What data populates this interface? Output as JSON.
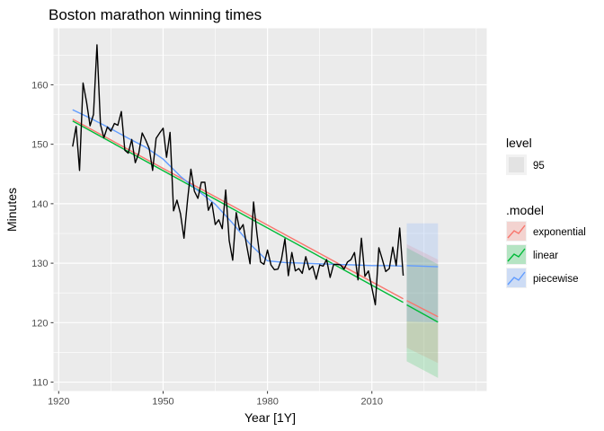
{
  "chart_data": {
    "type": "line",
    "title": "Boston marathon winning times",
    "xlabel": "Year [1Y]",
    "ylabel": "Minutes",
    "xlim": [
      1918.5,
      2043
    ],
    "ylim": [
      108.5,
      169.5
    ],
    "xticks": [
      1920,
      1950,
      1980,
      2010
    ],
    "xtick_labels": [
      "1920",
      "1950",
      "1980",
      "2010"
    ],
    "xminor": [
      1935,
      1965,
      1995,
      2025,
      2040
    ],
    "yticks": [
      110,
      120,
      130,
      140,
      150,
      160
    ],
    "ytick_labels": [
      "110",
      "120",
      "130",
      "140",
      "150",
      "160"
    ],
    "yminor": [
      115,
      125,
      135,
      145,
      155,
      165
    ],
    "grid": true,
    "legend_placement": "right",
    "observed": {
      "color": "#000000",
      "x": [
        1924,
        1925,
        1926,
        1927,
        1928,
        1929,
        1930,
        1931,
        1932,
        1933,
        1934,
        1935,
        1936,
        1937,
        1938,
        1939,
        1940,
        1941,
        1942,
        1943,
        1944,
        1945,
        1946,
        1947,
        1948,
        1949,
        1950,
        1951,
        1952,
        1953,
        1954,
        1955,
        1956,
        1957,
        1958,
        1959,
        1960,
        1961,
        1962,
        1963,
        1964,
        1965,
        1966,
        1967,
        1968,
        1969,
        1970,
        1971,
        1972,
        1973,
        1974,
        1975,
        1976,
        1977,
        1978,
        1979,
        1980,
        1981,
        1982,
        1983,
        1984,
        1985,
        1986,
        1987,
        1988,
        1989,
        1990,
        1991,
        1992,
        1993,
        1994,
        1995,
        1996,
        1997,
        1998,
        1999,
        2000,
        2001,
        2002,
        2003,
        2004,
        2005,
        2006,
        2007,
        2008,
        2009,
        2010,
        2011,
        2012,
        2013,
        2014,
        2015,
        2016,
        2017,
        2018,
        2019
      ],
      "y": [
        149.6,
        153.0,
        145.6,
        160.3,
        157.1,
        153.1,
        155.0,
        166.7,
        153.3,
        151.1,
        152.9,
        152.2,
        153.5,
        153.2,
        155.5,
        149.0,
        148.5,
        150.8,
        146.9,
        148.5,
        151.9,
        150.7,
        149.3,
        145.6,
        151.0,
        151.9,
        152.7,
        147.8,
        152.0,
        138.8,
        140.6,
        138.3,
        134.2,
        140.5,
        145.8,
        142.1,
        140.9,
        143.6,
        143.6,
        138.9,
        140.2,
        136.5,
        137.3,
        135.8,
        142.3,
        133.8,
        130.5,
        138.5,
        135.6,
        136.5,
        133.0,
        129.9,
        140.3,
        134.8,
        130.2,
        129.8,
        132.2,
        129.7,
        128.9,
        129.0,
        130.6,
        134.1,
        127.9,
        131.8,
        128.7,
        129.1,
        128.3,
        131.1,
        128.9,
        129.5,
        127.3,
        129.7,
        129.5,
        130.6,
        127.6,
        129.8,
        129.8,
        129.7,
        129.0,
        130.2,
        130.6,
        131.8,
        127.2,
        134.2,
        127.8,
        128.7,
        125.9,
        123.0,
        132.6,
        130.6,
        128.6,
        129.1,
        132.7,
        129.6,
        135.9,
        127.9
      ]
    },
    "series": [
      {
        "name": "exponential",
        "color": "#f8766d",
        "fitted": {
          "x": [
            1924,
            2019
          ],
          "y": [
            154.2,
            124.0
          ]
        },
        "forecast": {
          "x": [
            2020,
            2029
          ],
          "y": [
            123.7,
            121.0
          ]
        },
        "interval": {
          "x": [
            2020,
            2029
          ],
          "lo": [
            115.8,
            113.2
          ],
          "hi": [
            133.2,
            130.6
          ]
        }
      },
      {
        "name": "linear",
        "color": "#00ba38",
        "fitted": {
          "x": [
            1924,
            2019
          ],
          "y": [
            153.9,
            123.4
          ]
        },
        "forecast": {
          "x": [
            2020,
            2029
          ],
          "y": [
            123.0,
            120.1
          ]
        },
        "interval": {
          "x": [
            2020,
            2029
          ],
          "lo": [
            113.5,
            110.7
          ],
          "hi": [
            132.6,
            129.8
          ]
        }
      },
      {
        "name": "piecewise",
        "color": "#619cff",
        "fitted": {
          "x": [
            1924,
            1929,
            1935,
            1940,
            1945,
            1950,
            1955,
            1960,
            1965,
            1970,
            1975,
            1980,
            1985,
            1990,
            1995,
            2000,
            2005,
            2010,
            2015,
            2019
          ],
          "y": [
            155.8,
            154.4,
            152.6,
            151.0,
            149.5,
            147.5,
            144.6,
            142.2,
            139.9,
            136.7,
            133.2,
            130.4,
            130.1,
            130.0,
            129.9,
            129.8,
            129.7,
            129.6,
            129.6,
            129.5
          ]
        },
        "forecast": {
          "x": [
            2020,
            2029
          ],
          "y": [
            129.6,
            129.4
          ]
        },
        "interval": {
          "x": [
            2020,
            2029
          ],
          "lo": [
            120.2,
            120.0
          ],
          "hi": [
            136.7,
            136.7
          ]
        }
      }
    ],
    "legends": {
      "level": {
        "title": "level",
        "items": [
          "95"
        ]
      },
      "model": {
        "title": ".model",
        "items": [
          "exponential",
          "linear",
          "piecewise"
        ]
      }
    }
  }
}
